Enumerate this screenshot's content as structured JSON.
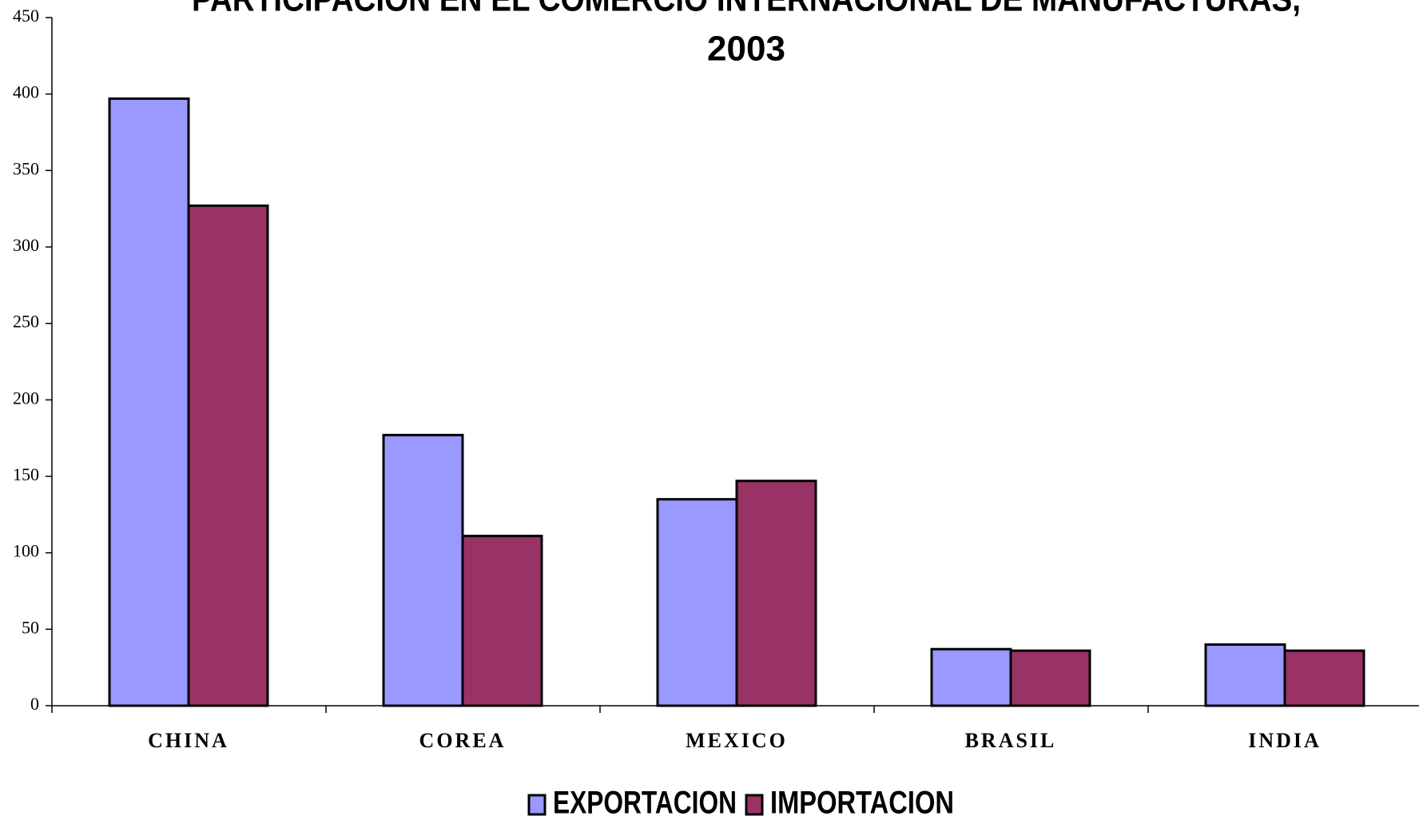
{
  "chart_data": {
    "type": "bar",
    "title": [
      "PARTICIPACION EN EL COMERCIO INTERNACIONAL DE MANUFACTURAS,",
      "2003"
    ],
    "categories": [
      "CHINA",
      "COREA",
      "MEXICO",
      "BRASIL",
      "INDIA"
    ],
    "series": [
      {
        "name": "EXPORTACION",
        "color": "#9999ff",
        "values": [
          397,
          177,
          135,
          37,
          40
        ]
      },
      {
        "name": "IMPORTACION",
        "color": "#993366",
        "values": [
          327,
          111,
          147,
          36,
          36
        ]
      }
    ],
    "ylim": [
      0,
      450
    ],
    "yticks": [
      0,
      50,
      100,
      150,
      200,
      250,
      300,
      350,
      400,
      450
    ],
    "grid": false,
    "legend": "bottom"
  }
}
